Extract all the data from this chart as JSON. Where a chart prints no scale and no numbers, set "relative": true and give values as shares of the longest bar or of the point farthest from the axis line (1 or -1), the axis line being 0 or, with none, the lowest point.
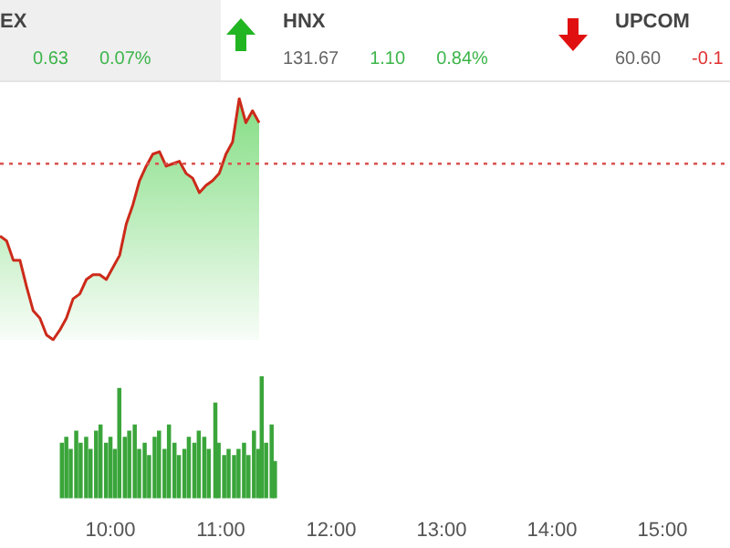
{
  "chart_data": [
    {
      "type": "other",
      "title": "EX",
      "annotations": [
        "0.63",
        "0.07%"
      ],
      "colors": [
        "#3cb54a",
        "#3cb54a"
      ]
    },
    {
      "type": "other",
      "title": "HNX",
      "annotations": [
        "131.67",
        "1.10",
        "0.84%"
      ],
      "colors": [
        "#666666",
        "#3cb54a",
        "#3cb54a"
      ]
    },
    {
      "type": "other",
      "title": "UPCOM",
      "annotations": [
        "60.60",
        "-0.1"
      ],
      "colors": [
        "#666666",
        "#e03030"
      ]
    },
    {
      "type": "area",
      "relative": true,
      "categories": [
        null,
        null,
        null,
        null,
        null,
        null,
        null,
        null,
        null,
        null,
        null,
        null,
        null,
        null,
        null,
        null,
        null,
        null,
        null,
        null,
        null,
        null,
        null,
        null,
        null,
        null,
        null,
        null,
        null,
        null,
        null,
        null,
        null,
        null,
        null,
        null,
        null,
        null,
        null,
        null
      ],
      "series": [
        {
          "color": "#cc2a1a",
          "values": [
            0.43,
            0.41,
            0.33,
            0.33,
            0.22,
            0.12,
            0.09,
            0.02,
            0,
            0.04,
            0.09,
            0.17,
            0.19,
            0.25,
            0.27,
            0.27,
            0.25,
            0.3,
            0.35,
            0.48,
            0.56,
            0.66,
            0.72,
            0.77,
            0.78,
            0.72,
            0.73,
            0.74,
            0.69,
            0.67,
            0.61,
            0.64,
            0.66,
            0.69,
            0.77,
            0.82,
            1,
            0.9,
            0.95,
            0.9
          ]
        }
      ],
      "ref_lines": [
        {
          "axis": "y",
          "value": 0.73,
          "color": "#d9534f",
          "line_style": "dotted"
        }
      ]
    },
    {
      "type": "bar",
      "relative": true,
      "tick_labels": "x",
      "xlim": [
        9.545,
        15.0
      ],
      "xticks": [
        {
          "value": 10,
          "label": "10:00"
        },
        {
          "value": 11,
          "label": "11:00"
        },
        {
          "value": 12,
          "label": "12:00"
        },
        {
          "value": 13,
          "label": "13:00"
        },
        {
          "value": 14,
          "label": "14:00"
        },
        {
          "value": 15,
          "label": "15:00"
        }
      ],
      "x": [
        9.56,
        9.6,
        9.64,
        9.69,
        9.73,
        9.78,
        9.82,
        9.87,
        9.91,
        9.96,
        10.0,
        10.04,
        10.08,
        10.13,
        10.17,
        10.22,
        10.26,
        10.31,
        10.35,
        10.4,
        10.44,
        10.49,
        10.53,
        10.58,
        10.62,
        10.67,
        10.71,
        10.76,
        10.8,
        10.85,
        10.89,
        10.95,
        10.98,
        11.03,
        11.07,
        11.12,
        11.16,
        11.21,
        11.25,
        11.3,
        11.34,
        11.37,
        11.41,
        11.46,
        11.49
      ],
      "series": [
        {
          "color": "#3aa53a",
          "values": [
            0.45,
            0.5,
            0.4,
            0.55,
            0.45,
            0.5,
            0.4,
            0.55,
            0.6,
            0.45,
            0.5,
            0.4,
            0.9,
            0.5,
            0.55,
            0.6,
            0.4,
            0.45,
            0.35,
            0.5,
            0.55,
            0.4,
            0.6,
            0.45,
            0.35,
            0.4,
            0.5,
            0.45,
            0.55,
            0.5,
            0.4,
            0.78,
            0.45,
            0.35,
            0.4,
            0.35,
            0.4,
            0.45,
            0.35,
            0.55,
            0.4,
            1,
            0.45,
            0.6,
            0.3
          ]
        }
      ]
    }
  ]
}
